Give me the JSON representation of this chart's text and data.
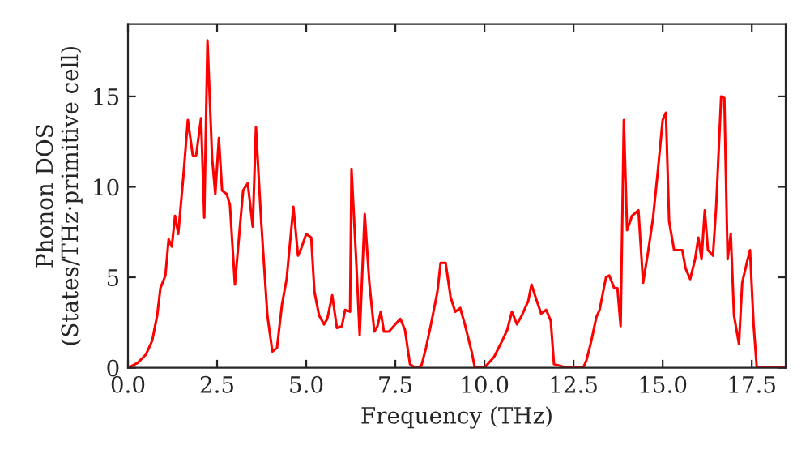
{
  "chart_data": {
    "type": "line",
    "xlabel": "Frequency (THz)",
    "ylabel": "Phonon DOS\n(States/THz·primitive cell)",
    "xlim": [
      0,
      18.45
    ],
    "ylim": [
      0,
      19
    ],
    "xticks": [
      {
        "value": 0,
        "label": "0.0"
      },
      {
        "value": 2.5,
        "label": "2.5"
      },
      {
        "value": 5,
        "label": "5.0"
      },
      {
        "value": 7.5,
        "label": "7.5"
      },
      {
        "value": 10,
        "label": "10.0"
      },
      {
        "value": 12.5,
        "label": "12.5"
      },
      {
        "value": 15,
        "label": "15.0"
      },
      {
        "value": 17.5,
        "label": "17.5"
      }
    ],
    "yticks": [
      0,
      5,
      10,
      15
    ],
    "grid": false,
    "legend": false,
    "marker": "none",
    "line_style": "solid",
    "series": [
      {
        "color": "#ff0000",
        "x": [
          0,
          0.27,
          0.5,
          0.68,
          0.82,
          0.91,
          1.05,
          1.14,
          1.23,
          1.32,
          1.41,
          1.55,
          1.68,
          1.82,
          1.91,
          2.05,
          2.14,
          2.23,
          2.36,
          2.45,
          2.55,
          2.64,
          2.77,
          2.86,
          3.0,
          3.14,
          3.23,
          3.36,
          3.5,
          3.59,
          3.73,
          3.82,
          3.91,
          4.05,
          4.18,
          4.32,
          4.45,
          4.64,
          4.77,
          4.86,
          5.0,
          5.14,
          5.23,
          5.36,
          5.5,
          5.59,
          5.73,
          5.86,
          6.0,
          6.09,
          6.23,
          6.27,
          6.41,
          6.5,
          6.64,
          6.77,
          6.91,
          7.0,
          7.09,
          7.18,
          7.32,
          7.5,
          7.64,
          7.77,
          7.91,
          8.05,
          8.23,
          8.36,
          8.5,
          8.68,
          8.77,
          8.91,
          9.05,
          9.18,
          9.32,
          9.45,
          9.64,
          9.73,
          10.0,
          10.27,
          10.5,
          10.64,
          10.77,
          10.91,
          11.05,
          11.23,
          11.32,
          11.45,
          11.59,
          11.73,
          11.86,
          11.95,
          12.32,
          12.77,
          12.86,
          13.0,
          13.14,
          13.23,
          13.41,
          13.5,
          13.64,
          13.73,
          13.82,
          13.91,
          14.0,
          14.14,
          14.32,
          14.45,
          14.59,
          14.73,
          14.86,
          15.0,
          15.09,
          15.18,
          15.32,
          15.55,
          15.64,
          15.77,
          15.91,
          16.0,
          16.09,
          16.18,
          16.27,
          16.41,
          16.5,
          16.64,
          16.73,
          16.82,
          16.91,
          17.0,
          17.14,
          17.23,
          17.36,
          17.45,
          17.55,
          17.64,
          18.45
        ],
        "values": [
          0,
          0.27,
          0.72,
          1.5,
          2.9,
          4.4,
          5.1,
          7.1,
          6.7,
          8.4,
          7.4,
          10.5,
          13.7,
          11.7,
          11.7,
          13.8,
          8.3,
          18.1,
          11.6,
          9.6,
          12.7,
          9.8,
          9.6,
          9.0,
          4.6,
          7.8,
          9.8,
          10.2,
          7.8,
          13.3,
          8.3,
          5.6,
          2.9,
          0.9,
          1.1,
          3.5,
          4.9,
          8.9,
          6.2,
          6.6,
          7.4,
          7.2,
          4.2,
          2.9,
          2.4,
          2.7,
          4.0,
          2.2,
          2.3,
          3.2,
          3.1,
          11.0,
          5.6,
          1.8,
          8.5,
          4.7,
          2.0,
          2.3,
          3.1,
          2.0,
          2.0,
          2.4,
          2.7,
          2.1,
          0.2,
          0,
          0.1,
          1.1,
          2.4,
          4.2,
          5.8,
          5.8,
          3.9,
          3.1,
          3.3,
          2.4,
          0.9,
          0,
          0,
          0.6,
          1.5,
          2.1,
          3.1,
          2.4,
          2.9,
          3.7,
          4.6,
          3.8,
          3.0,
          3.2,
          2.6,
          0.2,
          0,
          0,
          0.4,
          1.5,
          2.8,
          3.2,
          5.0,
          5.1,
          4.4,
          4.4,
          2.3,
          13.7,
          7.6,
          8.4,
          8.7,
          4.7,
          6.4,
          8.3,
          10.8,
          13.7,
          14.1,
          8.1,
          6.5,
          6.5,
          5.5,
          4.9,
          6.0,
          7.2,
          6.0,
          8.7,
          6.5,
          6.2,
          8.9,
          15.0,
          14.9,
          6.0,
          7.4,
          2.9,
          1.3,
          4.7,
          5.8,
          6.5,
          2.4,
          0,
          0
        ]
      }
    ]
  }
}
